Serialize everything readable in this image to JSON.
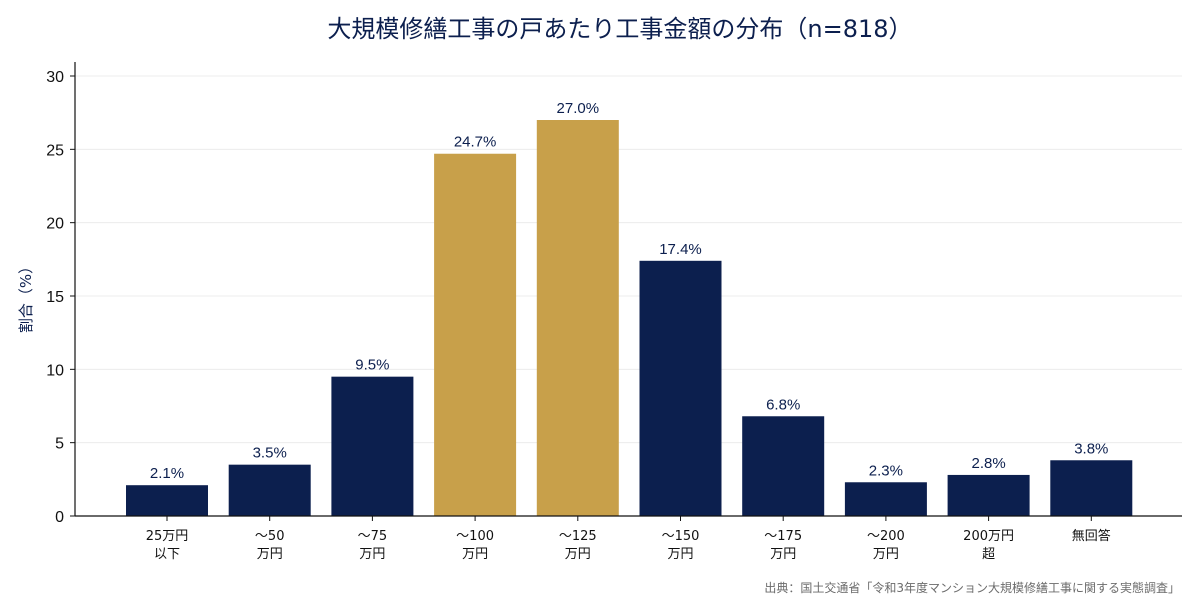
{
  "chart_data": {
    "type": "bar",
    "title": "大規模修繕工事の戸あたり工事金額の分布（n=818）",
    "ylabel": "割合（%）",
    "xlabel": "",
    "ylim": [
      0,
      30
    ],
    "yticks": [
      0,
      5,
      10,
      15,
      20,
      25,
      30
    ],
    "categories": [
      [
        "25万円",
        "以下"
      ],
      [
        "〜50",
        "万円"
      ],
      [
        "〜75",
        "万円"
      ],
      [
        "〜100",
        "万円"
      ],
      [
        "〜125",
        "万円"
      ],
      [
        "〜150",
        "万円"
      ],
      [
        "〜175",
        "万円"
      ],
      [
        "〜200",
        "万円"
      ],
      [
        "200万円",
        "超"
      ],
      [
        "無回答"
      ]
    ],
    "values": [
      2.1,
      3.5,
      9.5,
      24.7,
      27.0,
      17.4,
      6.8,
      2.3,
      2.8,
      3.8
    ],
    "value_labels": [
      "2.1%",
      "3.5%",
      "9.5%",
      "24.7%",
      "27.0%",
      "17.4%",
      "6.8%",
      "2.3%",
      "2.8%",
      "3.8%"
    ],
    "highlighted": [
      false,
      false,
      false,
      true,
      true,
      false,
      false,
      false,
      false,
      false
    ],
    "colors": {
      "default": "#0c1f4e",
      "highlight": "#c8a04a",
      "grid": "#ececec",
      "axis": "#111111"
    },
    "grid": true,
    "legend": "none"
  },
  "source_note": "出典：国土交通省「令和3年度マンション大規模修繕工事に関する実態調査」"
}
